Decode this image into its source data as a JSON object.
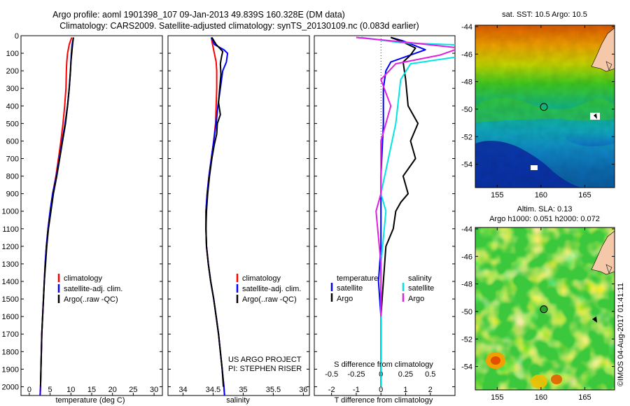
{
  "header": {
    "line1": "Argo profile: aoml 1901398_107 09-Jan-2013 49.839S 160.328E (DM data)",
    "line2": "Climatology: CARS2009. Satellite-adjusted climatology: synTS_20130109.nc (0.083d earlier)"
  },
  "colors": {
    "climatology": "#ff0000",
    "satellite": "#0000ff",
    "argo": "#000000",
    "s_satellite": "#00e5e5",
    "s_argo": "#e020e0"
  },
  "chart_data": [
    {
      "type": "line",
      "id": "temperature",
      "xlabel": "temperature (deg C)",
      "xlim": [
        -2,
        32
      ],
      "ylim": [
        0,
        2050
      ],
      "xticks": [
        0,
        5,
        10,
        15,
        20,
        25,
        30
      ],
      "yticks": [
        0,
        100,
        200,
        300,
        400,
        500,
        600,
        700,
        800,
        900,
        1000,
        1100,
        1200,
        1300,
        1400,
        1500,
        1600,
        1700,
        1800,
        1900,
        2000
      ],
      "legend": [
        "climatology",
        "satellite-adj. clim.",
        "Argo(..raw -QC)"
      ],
      "series": [
        {
          "name": "climatology",
          "color": "#ff0000",
          "points": [
            [
              10.2,
              10
            ],
            [
              9.6,
              50
            ],
            [
              9.2,
              100
            ],
            [
              9.0,
              150
            ],
            [
              8.9,
              200
            ],
            [
              8.8,
              300
            ],
            [
              8.5,
              400
            ],
            [
              8.1,
              500
            ],
            [
              7.6,
              600
            ],
            [
              7.0,
              700
            ],
            [
              6.4,
              800
            ],
            [
              5.6,
              900
            ],
            [
              5.0,
              1000
            ],
            [
              4.5,
              1100
            ],
            [
              4.1,
              1200
            ],
            [
              3.8,
              1300
            ],
            [
              3.6,
              1400
            ],
            [
              3.4,
              1500
            ],
            [
              3.2,
              1600
            ],
            [
              3.0,
              1700
            ],
            [
              2.9,
              1800
            ],
            [
              2.8,
              1900
            ],
            [
              2.7,
              2000
            ],
            [
              2.6,
              2050
            ]
          ]
        },
        {
          "name": "satellite-adj. clim.",
          "color": "#0000ff",
          "points": [
            [
              10.6,
              10
            ],
            [
              10.3,
              50
            ],
            [
              10.1,
              100
            ],
            [
              10.0,
              150
            ],
            [
              9.9,
              200
            ],
            [
              9.6,
              300
            ],
            [
              9.2,
              400
            ],
            [
              8.6,
              500
            ],
            [
              7.9,
              600
            ],
            [
              7.2,
              700
            ],
            [
              6.5,
              800
            ],
            [
              5.6,
              900
            ],
            [
              5.0,
              1000
            ],
            [
              4.5,
              1100
            ],
            [
              4.1,
              1200
            ],
            [
              3.8,
              1300
            ],
            [
              3.6,
              1400
            ],
            [
              3.4,
              1500
            ],
            [
              3.2,
              1600
            ],
            [
              3.0,
              1700
            ],
            [
              2.9,
              1800
            ],
            [
              2.8,
              1900
            ],
            [
              2.7,
              2000
            ],
            [
              2.6,
              2050
            ]
          ]
        },
        {
          "name": "Argo(..raw -QC)",
          "color": "#000000",
          "points": [
            [
              10.6,
              10
            ],
            [
              10.4,
              50
            ],
            [
              10.2,
              100
            ],
            [
              10.0,
              150
            ],
            [
              9.9,
              200
            ],
            [
              9.6,
              300
            ],
            [
              9.2,
              400
            ],
            [
              8.7,
              500
            ],
            [
              8.0,
              600
            ],
            [
              7.3,
              700
            ],
            [
              6.6,
              800
            ],
            [
              5.8,
              900
            ],
            [
              5.2,
              1000
            ],
            [
              4.6,
              1100
            ],
            [
              4.2,
              1200
            ],
            [
              3.9,
              1300
            ],
            [
              3.6,
              1400
            ],
            [
              3.4,
              1500
            ],
            [
              3.2,
              1600
            ],
            [
              3.0,
              1700
            ],
            [
              2.9,
              1800
            ],
            [
              2.8,
              1900
            ],
            [
              2.7,
              2000
            ]
          ]
        }
      ]
    },
    {
      "type": "line",
      "id": "salinity",
      "xlabel": "salinity",
      "xlim": [
        33.75,
        36.1
      ],
      "ylim": [
        0,
        2050
      ],
      "xticks": [
        34,
        34.5,
        35,
        35.5,
        36
      ],
      "legend": [
        "climatology",
        "satellite-adj. clim.",
        "Argo(..raw -QC)"
      ],
      "annotation": [
        "US ARGO PROJECT",
        "PI: STEPHEN RISER"
      ],
      "series": [
        {
          "name": "climatology",
          "color": "#ff0000",
          "points": [
            [
              34.47,
              10
            ],
            [
              34.49,
              50
            ],
            [
              34.52,
              100
            ],
            [
              34.55,
              150
            ],
            [
              34.56,
              200
            ],
            [
              34.56,
              300
            ],
            [
              34.55,
              400
            ],
            [
              34.54,
              500
            ],
            [
              34.51,
              600
            ],
            [
              34.47,
              700
            ],
            [
              34.43,
              800
            ],
            [
              34.4,
              900
            ],
            [
              34.38,
              1000
            ],
            [
              34.38,
              1100
            ],
            [
              34.39,
              1200
            ],
            [
              34.42,
              1300
            ],
            [
              34.46,
              1400
            ],
            [
              34.51,
              1500
            ],
            [
              34.55,
              1600
            ],
            [
              34.59,
              1700
            ],
            [
              34.62,
              1800
            ],
            [
              34.65,
              1900
            ],
            [
              34.68,
              2000
            ],
            [
              34.69,
              2050
            ]
          ]
        },
        {
          "name": "satellite-adj. clim.",
          "color": "#0000ff",
          "points": [
            [
              34.47,
              10
            ],
            [
              34.52,
              50
            ],
            [
              34.68,
              80
            ],
            [
              34.74,
              100
            ],
            [
              34.72,
              150
            ],
            [
              34.66,
              200
            ],
            [
              34.62,
              300
            ],
            [
              34.58,
              400
            ],
            [
              34.55,
              500
            ],
            [
              34.51,
              600
            ],
            [
              34.47,
              700
            ],
            [
              34.43,
              800
            ],
            [
              34.4,
              900
            ],
            [
              34.38,
              1000
            ],
            [
              34.38,
              1100
            ],
            [
              34.39,
              1200
            ],
            [
              34.42,
              1300
            ],
            [
              34.46,
              1400
            ],
            [
              34.51,
              1500
            ],
            [
              34.55,
              1600
            ],
            [
              34.59,
              1700
            ],
            [
              34.62,
              1800
            ],
            [
              34.65,
              1900
            ],
            [
              34.68,
              2000
            ],
            [
              34.69,
              2050
            ]
          ]
        },
        {
          "name": "Argo(..raw -QC)",
          "color": "#000000",
          "points": [
            [
              34.48,
              10
            ],
            [
              34.55,
              50
            ],
            [
              34.66,
              90
            ],
            [
              34.64,
              120
            ],
            [
              34.62,
              160
            ],
            [
              34.63,
              220
            ],
            [
              34.61,
              300
            ],
            [
              34.59,
              380
            ],
            [
              34.62,
              450
            ],
            [
              34.57,
              500
            ],
            [
              34.56,
              560
            ],
            [
              34.52,
              620
            ],
            [
              34.48,
              700
            ],
            [
              34.44,
              800
            ],
            [
              34.41,
              900
            ],
            [
              34.39,
              1000
            ],
            [
              34.38,
              1100
            ],
            [
              34.39,
              1200
            ],
            [
              34.42,
              1300
            ],
            [
              34.46,
              1400
            ],
            [
              34.51,
              1500
            ],
            [
              34.55,
              1600
            ],
            [
              34.59,
              1700
            ],
            [
              34.62,
              1800
            ],
            [
              34.65,
              1900
            ],
            [
              34.67,
              2000
            ]
          ]
        }
      ]
    },
    {
      "type": "line",
      "id": "difference",
      "xlabel": "T difference from climatology",
      "xlabel_top": "S difference from climatology",
      "xlim": [
        -2.7,
        3.0
      ],
      "ylim": [
        0,
        2050
      ],
      "xticks": [
        -2,
        -1,
        0,
        1,
        2
      ],
      "xticks_top": [
        [
          -0.5,
          "-0.5"
        ],
        [
          -0.25,
          "-0.25"
        ],
        [
          0,
          "0"
        ],
        [
          0.25,
          "0.25"
        ],
        [
          0.5,
          "0.5"
        ]
      ],
      "s_scale": 4,
      "legend_titles": [
        "temperature",
        "salinity"
      ],
      "legend_t": [
        "satellite",
        "Argo"
      ],
      "legend_s": [
        "satellite",
        "Argo"
      ],
      "series": [
        {
          "name": "T satellite",
          "color": "#0000ff",
          "points": [
            [
              0.4,
              10
            ],
            [
              0.9,
              30
            ],
            [
              1.8,
              80
            ],
            [
              1.2,
              110
            ],
            [
              0.4,
              150
            ],
            [
              0.2,
              200
            ],
            [
              0.1,
              300
            ],
            [
              0.1,
              500
            ],
            [
              0.0,
              800
            ],
            [
              0.0,
              1200
            ],
            [
              -0.1,
              1400
            ],
            [
              0.0,
              1600
            ],
            [
              0.0,
              2000
            ]
          ]
        },
        {
          "name": "T Argo",
          "color": "#000000",
          "points": [
            [
              0.4,
              10
            ],
            [
              0.8,
              30
            ],
            [
              1.4,
              70
            ],
            [
              1.2,
              110
            ],
            [
              0.9,
              150
            ],
            [
              1.0,
              250
            ],
            [
              1.1,
              400
            ],
            [
              1.5,
              500
            ],
            [
              1.2,
              600
            ],
            [
              1.4,
              700
            ],
            [
              0.9,
              800
            ],
            [
              1.1,
              900
            ],
            [
              0.8,
              950
            ],
            [
              0.6,
              1000
            ],
            [
              0.5,
              1100
            ],
            [
              0.2,
              1200
            ],
            [
              0.1,
              1400
            ],
            [
              0.0,
              1600
            ],
            [
              0.0,
              2000
            ]
          ]
        },
        {
          "name": "S satellite",
          "color": "#00e5e5",
          "points": [
            [
              -0.2,
              10
            ],
            [
              0.2,
              40
            ],
            [
              1.1,
              60
            ],
            [
              0.9,
              110
            ],
            [
              0.3,
              160
            ],
            [
              0.2,
              250
            ],
            [
              0.15,
              500
            ],
            [
              0.0,
              900
            ],
            [
              0.05,
              1000
            ],
            [
              0.0,
              1300
            ],
            [
              0.0,
              2000
            ]
          ]
        },
        {
          "name": "S Argo",
          "color": "#e020e0",
          "points": [
            [
              -0.25,
              10
            ],
            [
              0.3,
              40
            ],
            [
              0.8,
              70
            ],
            [
              0.6,
              110
            ],
            [
              0.15,
              160
            ],
            [
              0.0,
              250
            ],
            [
              0.1,
              400
            ],
            [
              0.0,
              600
            ],
            [
              0.0,
              900
            ],
            [
              -0.05,
              1000
            ],
            [
              0.0,
              1300
            ],
            [
              0.0,
              1600
            ]
          ]
        }
      ]
    },
    {
      "type": "heatmap",
      "id": "sst-map",
      "title": "sat. SST: 10.5 Argo: 10.5",
      "xticks": [
        155,
        160,
        165
      ],
      "yticks": [
        -44,
        -46,
        -48,
        -50,
        -52,
        -54
      ],
      "xlim": [
        152.5,
        168.4
      ],
      "ylim": [
        -55.7,
        -43.9
      ],
      "profile_location": [
        160.328,
        -49.839
      ]
    },
    {
      "type": "heatmap",
      "id": "sla-map",
      "title": "Altim. SLA: 0.13",
      "subtitle": "Argo h1000: 0.051 h2000: 0.072",
      "xticks": [
        155,
        160,
        165
      ],
      "yticks": [
        -44,
        -46,
        -48,
        -50,
        -52,
        -54
      ],
      "xlim": [
        152.5,
        168.4
      ],
      "ylim": [
        -55.7,
        -43.9
      ],
      "profile_location": [
        160.328,
        -49.839
      ]
    }
  ],
  "watermark": "©IMOS 04-Aug-2017 01:41:11"
}
